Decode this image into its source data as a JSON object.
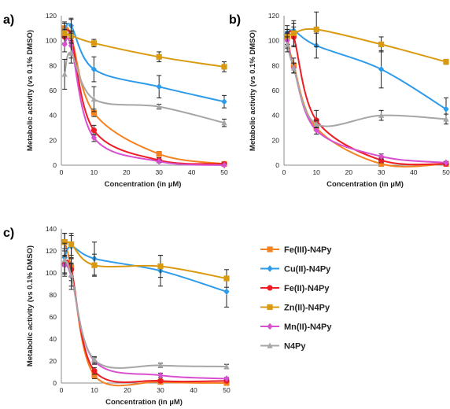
{
  "colors": {
    "Fe(III)-N4Py": "#f58220",
    "Cu(II)-N4Py": "#2e9bea",
    "Fe(II)-N4Py": "#ee1c24",
    "Zn(II)-N4Py": "#d99a10",
    "Mn(II)-N4Py": "#d84fd0",
    "N4Py": "#a6a6a6"
  },
  "markers": {
    "Fe(III)-N4Py": "square",
    "Cu(II)-N4Py": "diamond",
    "Fe(II)-N4Py": "circle",
    "Zn(II)-N4Py": "square",
    "Mn(II)-N4Py": "diamond",
    "N4Py": "triangle"
  },
  "legend": [
    "Fe(III)-N4Py",
    "Cu(II)-N4Py",
    "Fe(II)-N4Py",
    "Zn(II)-N4Py",
    "Mn(II)-N4Py",
    "N4Py"
  ],
  "chart_data": [
    {
      "panel": "a)",
      "type": "line",
      "xlabel": "Concentration (in µM)",
      "ylabel": "Metabolic activity (vs 0.1% DMSO)",
      "xlim": [
        0,
        50
      ],
      "ylim": [
        0,
        120
      ],
      "xticks": [
        0,
        10,
        20,
        30,
        40,
        50
      ],
      "yticks": [
        0,
        20,
        40,
        60,
        80,
        100,
        120
      ],
      "x": [
        1,
        3,
        10,
        30,
        50
      ],
      "series": [
        {
          "name": "Fe(III)-N4Py",
          "values": [
            110,
            104,
            42,
            9,
            1
          ],
          "errors": [
            5,
            4,
            3,
            2,
            1
          ]
        },
        {
          "name": "Cu(II)-N4Py",
          "values": [
            108,
            112,
            77,
            63,
            51
          ],
          "errors": [
            6,
            5,
            10,
            9,
            5
          ]
        },
        {
          "name": "Fe(II)-N4Py",
          "values": [
            103,
            103,
            28,
            4,
            1
          ],
          "errors": [
            6,
            5,
            4,
            2,
            1
          ]
        },
        {
          "name": "Zn(II)-N4Py",
          "values": [
            106,
            104,
            98,
            87,
            79
          ],
          "errors": [
            8,
            14,
            3,
            4,
            4
          ]
        },
        {
          "name": "Mn(II)-N4Py",
          "values": [
            97,
            96,
            22,
            3,
            0
          ],
          "errors": [
            6,
            10,
            3,
            1,
            1
          ]
        },
        {
          "name": "N4Py",
          "values": [
            73,
            90,
            53,
            47,
            34
          ],
          "errors": [
            12,
            8,
            10,
            2,
            3
          ]
        }
      ]
    },
    {
      "panel": "b)",
      "type": "line",
      "xlabel": "Concentration (in µM)",
      "ylabel": "Metabolic activity (vs 0.1% DMSO)",
      "xlim": [
        0,
        50
      ],
      "ylim": [
        0,
        120
      ],
      "xticks": [
        0,
        10,
        20,
        30,
        40,
        50
      ],
      "yticks": [
        0,
        20,
        40,
        60,
        80,
        100,
        120
      ],
      "x": [
        1,
        3,
        10,
        30,
        50
      ],
      "series": [
        {
          "name": "Fe(III)-N4Py",
          "values": [
            103,
            80,
            30,
            1,
            1
          ],
          "errors": [
            6,
            6,
            5,
            1,
            1
          ]
        },
        {
          "name": "Cu(II)-N4Py",
          "values": [
            106,
            108,
            96,
            77,
            45
          ],
          "errors": [
            6,
            6,
            10,
            15,
            9
          ]
        },
        {
          "name": "Fe(II)-N4Py",
          "values": [
            102,
            103,
            36,
            4,
            1
          ],
          "errors": [
            5,
            8,
            8,
            2,
            1
          ]
        },
        {
          "name": "Zn(II)-N4Py",
          "values": [
            103,
            106,
            109,
            97,
            83
          ],
          "errors": [
            6,
            10,
            14,
            6,
            2
          ]
        },
        {
          "name": "Mn(II)-N4Py",
          "values": [
            100,
            78,
            28,
            7,
            2
          ],
          "errors": [
            6,
            4,
            3,
            2,
            1
          ]
        },
        {
          "name": "N4Py",
          "values": [
            97,
            78,
            33,
            40,
            37
          ],
          "errors": [
            6,
            4,
            3,
            4,
            4
          ]
        }
      ]
    },
    {
      "panel": "c)",
      "type": "line",
      "xlabel": "Concentration (in µM)",
      "ylabel": "Metabolic activity (vs 0.1% DMSO)",
      "xlim": [
        0,
        50
      ],
      "ylim": [
        0,
        140
      ],
      "xticks": [
        0,
        10,
        20,
        30,
        40,
        50
      ],
      "yticks": [
        0,
        20,
        40,
        60,
        80,
        100,
        120,
        140
      ],
      "x": [
        1,
        3,
        10,
        30,
        50
      ],
      "series": [
        {
          "name": "Fe(III)-N4Py",
          "values": [
            128,
            105,
            7,
            1,
            0
          ],
          "errors": [
            8,
            8,
            3,
            1,
            1
          ]
        },
        {
          "name": "Cu(II)-N4Py",
          "values": [
            114,
            124,
            113,
            102,
            83
          ],
          "errors": [
            8,
            10,
            15,
            14,
            14
          ]
        },
        {
          "name": "Fe(II)-N4Py",
          "values": [
            108,
            103,
            11,
            2,
            2
          ],
          "errors": [
            8,
            10,
            3,
            1,
            1
          ]
        },
        {
          "name": "Zn(II)-N4Py",
          "values": [
            128,
            126,
            107,
            106,
            95
          ],
          "errors": [
            8,
            10,
            10,
            10,
            8
          ]
        },
        {
          "name": "Mn(II)-N4Py",
          "values": [
            107,
            97,
            20,
            7,
            4
          ],
          "errors": [
            8,
            12,
            3,
            2,
            1
          ]
        },
        {
          "name": "N4Py",
          "values": [
            112,
            98,
            21,
            16,
            15
          ],
          "errors": [
            15,
            10,
            3,
            2,
            2
          ]
        }
      ]
    }
  ]
}
